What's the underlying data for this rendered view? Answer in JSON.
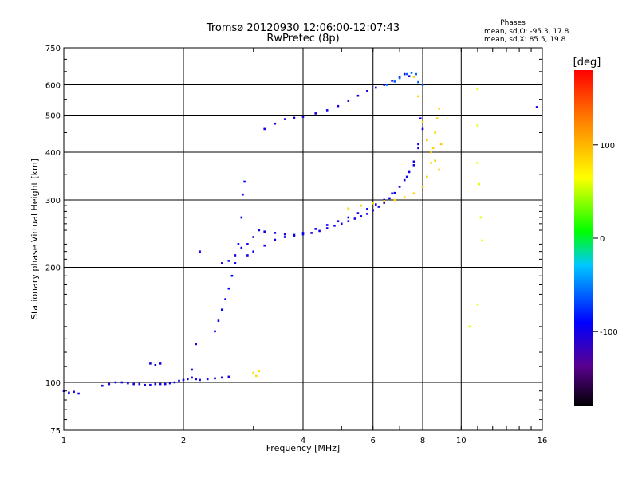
{
  "chart_data": {
    "type": "scatter",
    "title": "Tromsø 20120930 12:06:00-12:07:43",
    "subtitle": "RwPretec (8p)",
    "xlabel": "Frequency [MHz]",
    "ylabel": "Stationary phase Virtual Height [km]",
    "x_scale": "log",
    "y_scale": "log",
    "xlim": [
      1,
      16
    ],
    "ylim": [
      75,
      750
    ],
    "grid": true,
    "x_ticks": [
      {
        "v": 1,
        "label": "1"
      },
      {
        "v": 2,
        "label": "2"
      },
      {
        "v": 4,
        "label": "4"
      },
      {
        "v": 6,
        "label": "6"
      },
      {
        "v": 8,
        "label": "8"
      },
      {
        "v": 10,
        "label": "10"
      },
      {
        "v": 16,
        "label": "16"
      }
    ],
    "y_ticks": [
      {
        "v": 75,
        "label": "75"
      },
      {
        "v": 100,
        "label": "100"
      },
      {
        "v": 200,
        "label": "200"
      },
      {
        "v": 300,
        "label": "300"
      },
      {
        "v": 400,
        "label": "400"
      },
      {
        "v": 500,
        "label": "500"
      },
      {
        "v": 600,
        "label": "600"
      },
      {
        "v": 750,
        "label": "750"
      }
    ],
    "stats": {
      "heading": "Phases",
      "line1": "mean, sd,O: -95.3, 17.8",
      "line2": "mean, sd,X:  85.5, 19.8"
    },
    "colorbar": {
      "label": "[deg]",
      "range": [
        -180,
        180
      ],
      "ticks": [
        {
          "v": 100,
          "label": "100"
        },
        {
          "v": 0,
          "label": "0"
        },
        {
          "v": -100,
          "label": "-100"
        }
      ]
    },
    "series": [
      {
        "x": [
          1.0,
          1.03,
          1.06,
          1.09
        ],
        "y": [
          95,
          94,
          94.5,
          93.5
        ],
        "phase": -100
      },
      {
        "x": [
          1.25,
          1.3,
          1.35,
          1.4,
          1.45,
          1.5,
          1.55,
          1.6,
          1.65,
          1.7,
          1.75,
          1.8,
          1.85,
          1.9,
          1.95,
          2.0,
          2.05,
          2.1,
          2.15,
          2.2,
          2.3,
          2.4,
          2.5,
          2.6
        ],
        "y": [
          98,
          99,
          100,
          100,
          99.5,
          99,
          99,
          98.5,
          98.5,
          99,
          99,
          99,
          99.5,
          100,
          101,
          101.5,
          102,
          103,
          102,
          101.5,
          102,
          102.5,
          103,
          103.5
        ],
        "phase": -100
      },
      {
        "x": [
          1.65,
          1.7,
          1.75,
          2.1,
          2.15,
          2.2
        ],
        "y": [
          112,
          111,
          112,
          108,
          126,
          220
        ],
        "phase": -100
      },
      {
        "x": [
          2.4,
          2.45,
          2.5,
          2.55,
          2.6,
          2.65,
          2.7,
          2.75,
          2.8,
          2.82,
          2.85
        ],
        "y": [
          136,
          145,
          155,
          165,
          176,
          190,
          205,
          230,
          270,
          310,
          335
        ],
        "phase": -90
      },
      {
        "x": [
          2.5,
          2.6,
          2.7,
          2.8,
          2.9,
          3.0,
          3.1,
          3.2,
          3.4,
          3.6,
          3.8,
          4.0,
          4.2,
          4.4,
          4.6,
          4.8,
          5.0,
          5.2,
          5.4,
          5.6,
          5.8,
          6.0,
          6.2,
          6.4,
          6.6,
          6.8,
          7.0,
          7.2,
          7.4,
          7.6,
          7.8,
          8.0
        ],
        "y": [
          205,
          208,
          215,
          225,
          230,
          240,
          250,
          248,
          246,
          244,
          243,
          244,
          246,
          249,
          253,
          257,
          260,
          264,
          268,
          272,
          276,
          282,
          288,
          295,
          303,
          313,
          325,
          338,
          355,
          378,
          410,
          460
        ],
        "phase": -100
      },
      {
        "x": [
          2.9,
          3.0,
          3.2,
          3.4,
          3.6,
          3.8,
          4.0,
          4.3,
          4.6,
          4.9,
          5.2,
          5.5,
          5.8,
          6.1,
          6.4,
          6.7,
          7.0,
          7.3,
          7.6,
          7.8,
          7.9
        ],
        "y": [
          215,
          220,
          228,
          236,
          240,
          242,
          246,
          252,
          258,
          264,
          270,
          277,
          284,
          292,
          300,
          312,
          325,
          345,
          370,
          420,
          490
        ],
        "phase": -95
      },
      {
        "x": [
          3.2,
          3.4,
          3.6,
          3.8,
          4.0,
          4.3,
          4.6,
          4.9,
          5.2,
          5.5,
          5.8,
          6.1,
          6.4,
          6.7,
          7.0,
          7.2,
          7.4
        ],
        "y": [
          460,
          475,
          488,
          492,
          495,
          505,
          515,
          528,
          545,
          562,
          578,
          590,
          600,
          615,
          628,
          640,
          632
        ],
        "phase": -100
      },
      {
        "x": [
          6.5,
          6.8,
          7.0,
          7.3,
          7.5,
          7.7,
          7.8,
          8.0
        ],
        "y": [
          600,
          612,
          625,
          640,
          645,
          640,
          610,
          600
        ],
        "phase": -60
      },
      {
        "x": [
          5.2,
          5.6,
          6.0,
          6.4,
          6.8,
          7.2,
          7.6,
          8.0,
          8.2,
          8.4,
          8.5,
          8.6,
          8.7,
          8.8
        ],
        "y": [
          285,
          290,
          294,
          298,
          300,
          305,
          312,
          325,
          345,
          375,
          410,
          450,
          490,
          520
        ],
        "phase": 85
      },
      {
        "x": [
          7.6,
          7.8,
          8.0,
          8.2,
          8.4,
          8.6,
          8.8,
          8.9
        ],
        "y": [
          630,
          560,
          480,
          430,
          400,
          380,
          360,
          420
        ],
        "phase": 90
      },
      {
        "x": [
          3.0,
          3.05,
          3.1
        ],
        "y": [
          106,
          104,
          107
        ],
        "phase": 80
      },
      {
        "x": [
          11.0,
          11.0,
          11.0,
          11.1,
          11.2,
          11.3,
          11.0,
          10.5
        ],
        "y": [
          585,
          470,
          375,
          330,
          270,
          235,
          160,
          140
        ],
        "phase": 60
      },
      {
        "x": [
          15.5
        ],
        "y": [
          525
        ],
        "phase": -100
      }
    ]
  }
}
